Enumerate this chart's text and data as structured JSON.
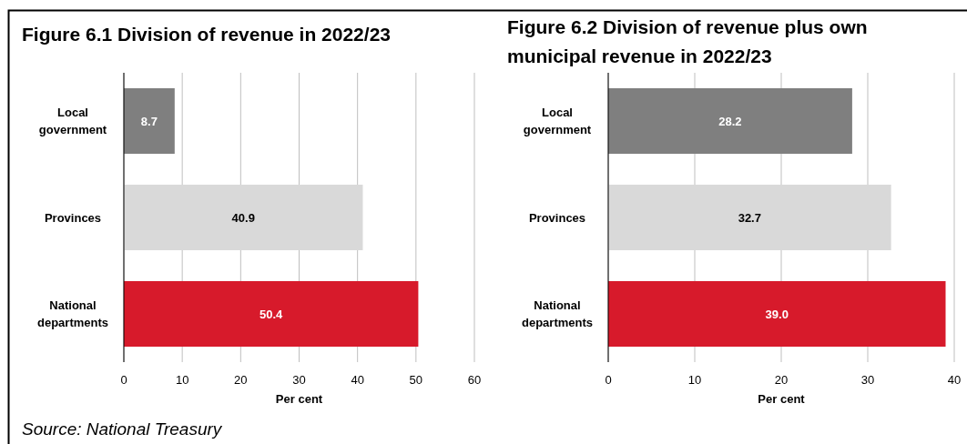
{
  "chart_data": [
    {
      "type": "bar",
      "orientation": "horizontal",
      "title": "Figure 6.1 Division of revenue in 2022/23",
      "xlabel": "Per cent",
      "categories": [
        "Local government",
        "Provinces",
        "National departments"
      ],
      "values": [
        8.7,
        40.9,
        50.4
      ],
      "colors": [
        "#7f7f7f",
        "#d9d9d9",
        "#d71a2b"
      ],
      "xlim": [
        0,
        60
      ],
      "xticks": [
        0,
        10,
        20,
        30,
        40,
        50,
        60
      ],
      "grid": "x",
      "data_labels": true,
      "annotations": [
        "Source: National Treasury"
      ]
    },
    {
      "type": "bar",
      "orientation": "horizontal",
      "title": "Figure 6.2 Division of revenue plus own municipal revenue in 2022/23",
      "xlabel": "Per cent",
      "categories": [
        "Local government",
        "Provinces",
        "National departments"
      ],
      "values": [
        28.2,
        32.7,
        39.0
      ],
      "value_labels": [
        "28.2",
        "32.7",
        "39.0"
      ],
      "colors": [
        "#7f7f7f",
        "#d9d9d9",
        "#d71a2b"
      ],
      "xlim": [
        0,
        40
      ],
      "xticks": [
        0,
        10,
        20,
        30,
        40
      ],
      "grid": "x"
    }
  ]
}
